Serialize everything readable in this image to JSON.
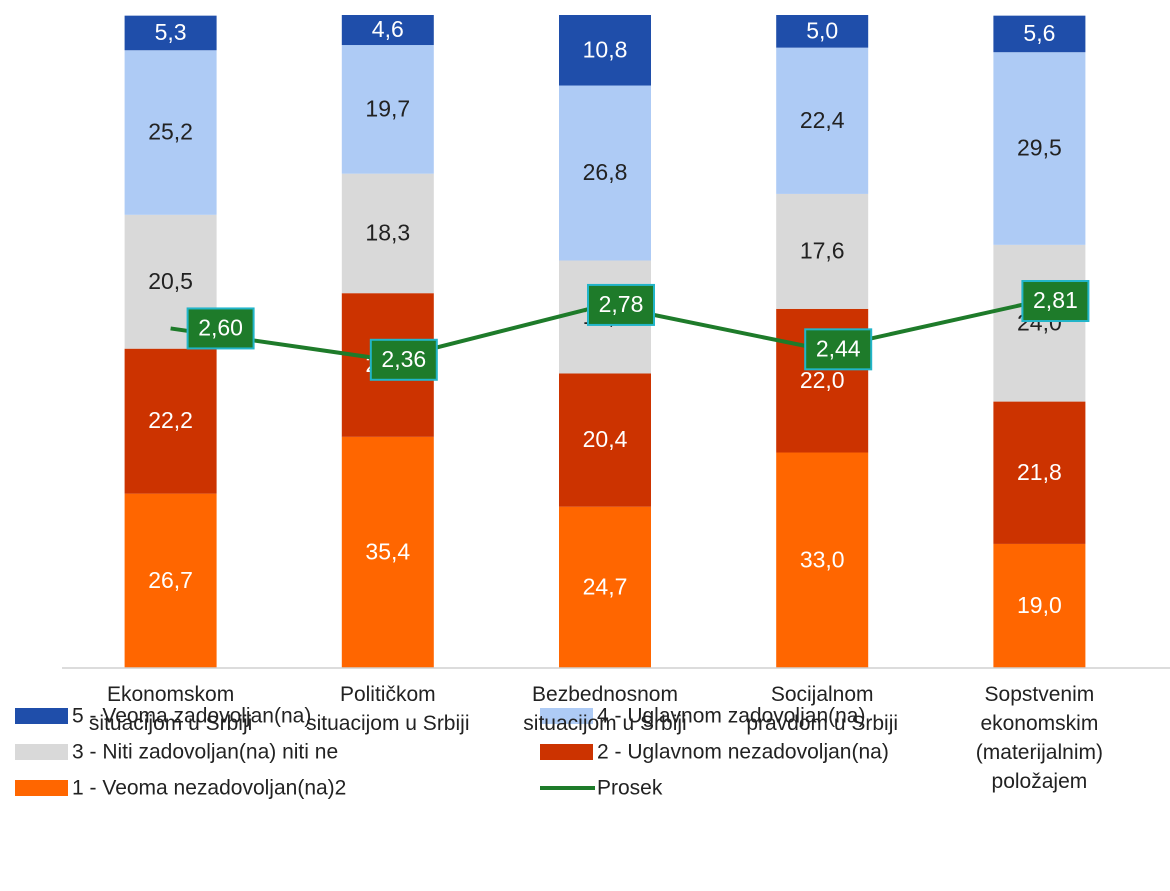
{
  "chart_data": {
    "type": "bar",
    "stacked": true,
    "categories": [
      "Ekonomskom\nsituacijom u Srbiji",
      "Političkom\nsituacijom u Srbiji",
      "Bezbednosnom\nsituacijom u Srbiji",
      "Socijalnom\npravdom u Srbiji",
      "Sopstvenim\nekonomskim\n(materijalnim)\npoložajem"
    ],
    "ylim": [
      0,
      100
    ],
    "y2lim": [
      0,
      5
    ],
    "series": [
      {
        "name": "1 - Veoma nezadovoljan(na)2",
        "color": "#ff6600",
        "values": [
          26.7,
          35.4,
          24.7,
          33.0,
          19.0
        ],
        "value_labels": [
          "26,7",
          "35,4",
          "24,7",
          "33,0",
          "19,0"
        ]
      },
      {
        "name": "2 - Uglavnom nezadovoljan(na)",
        "color": "#cc3300",
        "values": [
          22.2,
          22.0,
          20.4,
          22.0,
          21.8
        ],
        "value_labels": [
          "22,2",
          "22,0",
          "20,4",
          "22,0",
          "21,8"
        ]
      },
      {
        "name": "3 - Niti zadovoljan(na) niti ne",
        "color": "#d9d9d9",
        "values": [
          20.5,
          18.3,
          17.3,
          17.6,
          24.0
        ],
        "value_labels": [
          "20,5",
          "18,3",
          "17,3",
          "17,6",
          "24,0"
        ]
      },
      {
        "name": "4 - Uglavnom zadovoljan(na)",
        "color": "#aecbf5",
        "values": [
          25.2,
          19.7,
          26.8,
          22.4,
          29.5
        ],
        "value_labels": [
          "25,2",
          "19,7",
          "26,8",
          "22,4",
          "29,5"
        ]
      },
      {
        "name": "5 - Veoma zadovoljan(na)",
        "color": "#1f4eaa",
        "values": [
          5.3,
          4.6,
          10.8,
          5.0,
          5.6
        ],
        "value_labels": [
          "5,3",
          "4,6",
          "10,8",
          "5,0",
          "5,6"
        ]
      },
      {
        "name": "Prosek",
        "type": "line",
        "axis": "y2",
        "color": "#1e7b2a",
        "values": [
          2.6,
          2.36,
          2.78,
          2.44,
          2.81
        ],
        "value_labels": [
          "2,60",
          "2,36",
          "2,78",
          "2,44",
          "2,81"
        ]
      }
    ]
  }
}
